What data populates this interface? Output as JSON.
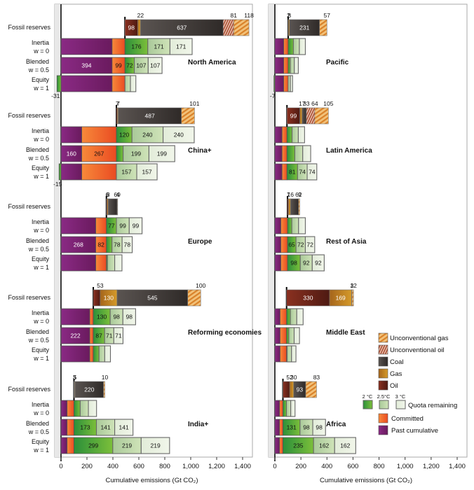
{
  "chart_data": {
    "type": "bar",
    "orientation": "horizontal-stacked",
    "xlabel": "Cumulative emissions (Gt CO₂)",
    "xlim": [
      0,
      1400
    ],
    "xticks": [
      "0",
      "200",
      "400",
      "600",
      "800",
      "1,000",
      "1,200",
      "1,400"
    ],
    "xtick_values": [
      0,
      200,
      400,
      600,
      800,
      1000,
      1200,
      1400
    ],
    "row_labels": {
      "fossil": [
        "Fossil reserves"
      ],
      "inertia": [
        "Inertia",
        "w = 0"
      ],
      "blended": [
        "Blended",
        "w = 0.5"
      ],
      "equity": [
        "Equity",
        "w = 1"
      ]
    },
    "colors": {
      "past": "#7d2170",
      "committed": "#f2662a",
      "q2": "#3a9a3a",
      "q25": "#b9d6a3",
      "q3": "#e8f1e0",
      "oil": "#6b2418",
      "gas": "#b9741e",
      "coal": "#4a4441",
      "ugas": "#e6a04a",
      "uoil": "#c77a5a"
    },
    "legend": {
      "items": [
        {
          "key": "ugas",
          "label": "Unconventional gas"
        },
        {
          "key": "uoil",
          "label": "Unconventional oil"
        },
        {
          "key": "coal",
          "label": "Coal"
        },
        {
          "key": "gas",
          "label": "Gas"
        },
        {
          "key": "oil",
          "label": "Oil"
        }
      ],
      "quota_headers": [
        "2 °C",
        "2.5°C",
        "3 °C"
      ],
      "quota_label": "Quota remaining",
      "committed_label": "Committed",
      "past_label": "Past cumulative",
      "placement": "bottom-right of right panel"
    },
    "panels": [
      {
        "regions": [
          {
            "name": "North America",
            "fossil": {
              "oil": 98,
              "gas": 22,
              "coal": 637,
              "uoil": 81,
              "ugas": 118
            },
            "inertia": {
              "past": 394,
              "committed": 99,
              "q2": 176,
              "q25": 171,
              "q3": 171
            },
            "blended": {
              "past": 394,
              "committed": 99,
              "q2": 72,
              "q25": 107,
              "q3": 107
            },
            "equity": {
              "past": 394,
              "committed": 99,
              "q2": -31,
              "q25": 42,
              "q3": 42
            }
          },
          {
            "name": "China+",
            "fossil": {
              "oil": 7,
              "gas": 7,
              "coal": 487,
              "uoil": 0,
              "ugas": 101
            },
            "inertia": {
              "past": 160,
              "committed": 267,
              "q2": 120,
              "q25": 240,
              "q3": 240
            },
            "blended": {
              "past": 160,
              "committed": 267,
              "q2": 52,
              "q25": 199,
              "q3": 199
            },
            "equity": {
              "past": 160,
              "committed": 267,
              "q2": -15,
              "q25": 157,
              "q3": 157
            }
          },
          {
            "name": "Europe",
            "fossil": {
              "oil": 6,
              "gas": 8,
              "coal": 69,
              "uoil": 0,
              "ugas": 4
            },
            "inertia": {
              "past": 268,
              "committed": 82,
              "q2": 77,
              "q25": 99,
              "q3": 99
            },
            "blended": {
              "past": 268,
              "committed": 82,
              "q2": 43,
              "q25": 78,
              "q3": 78
            },
            "equity": {
              "past": 268,
              "committed": 82,
              "q2": 8,
              "q25": 56,
              "q3": 56
            }
          },
          {
            "name": "Reforming economies",
            "fossil": {
              "oil": 53,
              "gas": 130,
              "coal": 545,
              "uoil": 0,
              "ugas": 100
            },
            "inertia": {
              "past": 222,
              "committed": 27,
              "q2": 130,
              "q25": 98,
              "q3": 98
            },
            "blended": {
              "past": 222,
              "committed": 27,
              "q2": 87,
              "q25": 71,
              "q3": 71
            },
            "equity": {
              "past": 222,
              "committed": 27,
              "q2": 44,
              "q25": 44,
              "q3": 44
            }
          },
          {
            "name": "India+",
            "fossil": {
              "oil": 3,
              "gas": 5,
              "coal": 220,
              "uoil": 0,
              "ugas": 10
            },
            "inertia": {
              "past": 47,
              "committed": 53,
              "q2": 48,
              "q25": 63,
              "q3": 63
            },
            "blended": {
              "past": 47,
              "committed": 53,
              "q2": 173,
              "q25": 141,
              "q3": 141
            },
            "equity": {
              "past": 47,
              "committed": 53,
              "q2": 299,
              "q25": 219,
              "q3": 219
            }
          }
        ]
      },
      {
        "regions": [
          {
            "name": "Pacific",
            "fossil": {
              "oil": 2,
              "gas": 8,
              "coal": 231,
              "uoil": 0,
              "ugas": 57
            },
            "inertia": {
              "past": 68,
              "committed": 34,
              "q2": 40,
              "q25": 46,
              "q3": 46
            },
            "blended": {
              "past": 68,
              "committed": 34,
              "q2": 16,
              "q25": 31,
              "q3": 31
            },
            "equity": {
              "past": 68,
              "committed": 34,
              "q2": -7,
              "q25": 17,
              "q3": 17
            }
          },
          {
            "name": "Latin America",
            "fossil": {
              "oil": 99,
              "gas": 17,
              "coal": 33,
              "uoil": 64,
              "ugas": 105
            },
            "inertia": {
              "past": 55,
              "committed": 38,
              "q2": 39,
              "q25": 48,
              "q3": 48
            },
            "blended": {
              "past": 55,
              "committed": 38,
              "q2": 60,
              "q25": 61,
              "q3": 61
            },
            "equity": {
              "past": 55,
              "committed": 38,
              "q2": 81,
              "q25": 74,
              "q3": 74
            }
          },
          {
            "name": "Rest of Asia",
            "fossil": {
              "oil": 7,
              "gas": 16,
              "coal": 62,
              "uoil": 0,
              "ugas": 9
            },
            "inertia": {
              "past": 46,
              "committed": 51,
              "q2": 33,
              "q25": 52,
              "q3": 52
            },
            "blended": {
              "past": 46,
              "committed": 51,
              "q2": 65,
              "q25": 72,
              "q3": 72
            },
            "equity": {
              "past": 46,
              "committed": 51,
              "q2": 98,
              "q25": 92,
              "q3": 92
            }
          },
          {
            "name": "Middle East",
            "fossil": {
              "oil": 330,
              "gas": 169,
              "coal": 3,
              "uoil": 0,
              "ugas": 12
            },
            "inertia": {
              "past": 40,
              "committed": 50,
              "q2": 29,
              "q25": 49,
              "q3": 49
            },
            "blended": {
              "past": 40,
              "committed": 50,
              "q2": 17,
              "q25": 41,
              "q3": 41
            },
            "equity": {
              "past": 40,
              "committed": 50,
              "q2": 4,
              "q25": 34,
              "q3": 34
            }
          },
          {
            "name": "Africa",
            "fossil": {
              "oil": 52,
              "gas": 30,
              "coal": 93,
              "uoil": 0,
              "ugas": 83
            },
            "inertia": {
              "past": 36,
              "committed": 26,
              "q2": 27,
              "q25": 33,
              "q3": 33
            },
            "blended": {
              "past": 36,
              "committed": 26,
              "q2": 131,
              "q25": 98,
              "q3": 98
            },
            "equity": {
              "past": 36,
              "committed": 26,
              "q2": 235,
              "q25": 162,
              "q3": 162
            }
          }
        ]
      }
    ]
  }
}
